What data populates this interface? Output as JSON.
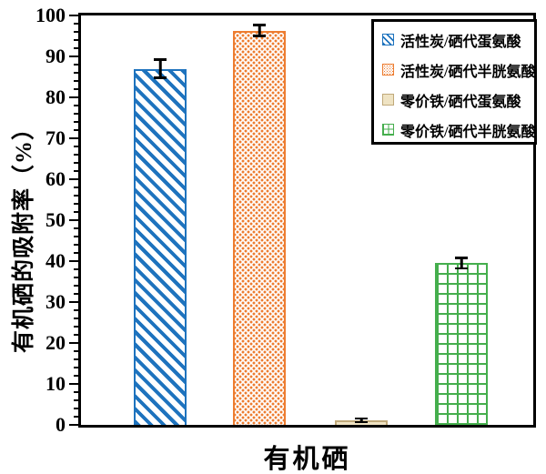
{
  "figure": {
    "background": "#ffffff",
    "frame_color": "#000000",
    "error_bar_color": "#000000"
  },
  "chart_data": {
    "type": "bar",
    "title": "",
    "xlabel": "有机硒",
    "ylabel": "有机硒的吸附率（%）",
    "ylim": [
      0,
      100
    ],
    "y_major_tick_interval": 10,
    "y_minor_tick_interval": 2,
    "y_tick_labels": [
      "0",
      "10",
      "20",
      "30",
      "40",
      "50",
      "60",
      "70",
      "80",
      "90",
      "100"
    ],
    "categories": [
      "有机硒"
    ],
    "grid": false,
    "legend_position": "upper-right",
    "series": [
      {
        "name": "活性炭/硒代蛋氨酸",
        "value": 87,
        "error": 2.5,
        "color": "#1E73BE",
        "pattern": "diagonal-hatch"
      },
      {
        "name": "活性炭/硒代半胱氨酸",
        "value": 96.3,
        "error": 1.6,
        "color": "#ED7D31",
        "pattern": "checker-dots"
      },
      {
        "name": "零价铁/硒代蛋氨酸",
        "value": 1.1,
        "error": 0.7,
        "color": "#C0A97A",
        "fill": "#EFE3C3",
        "pattern": "solid"
      },
      {
        "name": "零价铁/硒代半胱氨酸",
        "value": 39.5,
        "error": 1.6,
        "color": "#45AE4D",
        "pattern": "grid"
      }
    ]
  }
}
